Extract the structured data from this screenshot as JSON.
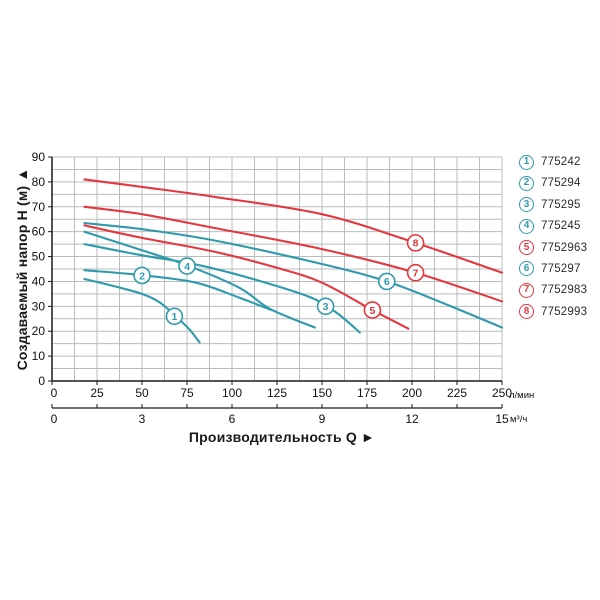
{
  "chart_data": {
    "type": "line",
    "title": "",
    "xlabel": "Производительность Q  ►",
    "ylabel": "Создаваемый напор Н (м)  ▲",
    "grid": true,
    "legend_position": "right",
    "colors": {
      "teal": "#2F9AAB",
      "red": "#E2383E",
      "grid": "#b9bcbe",
      "axis": "#1a1a1a",
      "text": "#111111"
    },
    "x_axis": {
      "primary": {
        "unit": "л/мин",
        "range": [
          0,
          250
        ],
        "ticks": [
          0,
          25,
          50,
          75,
          100,
          125,
          150,
          175,
          200,
          225,
          250
        ],
        "minor_step": 12.5
      },
      "secondary": {
        "unit": "м³/ч",
        "range": [
          0,
          15
        ],
        "labeled_ticks": [
          0,
          3,
          6,
          9,
          12,
          15
        ],
        "tick_step": 1.5
      }
    },
    "y_axis": {
      "range": [
        0,
        90
      ],
      "ticks": [
        0,
        10,
        20,
        30,
        40,
        50,
        60,
        70,
        80,
        90
      ],
      "minor_step": 5
    },
    "series": [
      {
        "num": "1",
        "code": "775242",
        "color": "teal",
        "points": [
          [
            18,
            41
          ],
          [
            35,
            38
          ],
          [
            50,
            35
          ],
          [
            60,
            31.5
          ],
          [
            68,
            26.5
          ],
          [
            76,
            21
          ],
          [
            82,
            15.5
          ]
        ],
        "marker": [
          68,
          26
        ]
      },
      {
        "num": "2",
        "code": "775294",
        "color": "teal",
        "points": [
          [
            18,
            44.5
          ],
          [
            50,
            42.5
          ],
          [
            80,
            39.5
          ],
          [
            104,
            33.5
          ],
          [
            122,
            28.5
          ]
        ],
        "marker": [
          50,
          42.4
        ]
      },
      {
        "num": "3",
        "code": "775295",
        "color": "teal",
        "points": [
          [
            18,
            55
          ],
          [
            50,
            50.5
          ],
          [
            82,
            46.5
          ],
          [
            114,
            40.5
          ],
          [
            143,
            33.8
          ],
          [
            158,
            27.5
          ],
          [
            171,
            19.5
          ]
        ],
        "marker": [
          152,
          30
        ]
      },
      {
        "num": "4",
        "code": "775245",
        "color": "teal",
        "points": [
          [
            18,
            60
          ],
          [
            50,
            52.5
          ],
          [
            75,
            46.5
          ],
          [
            104,
            37.5
          ],
          [
            121,
            29
          ],
          [
            146,
            21.5
          ]
        ],
        "marker": [
          75,
          46.2
        ]
      },
      {
        "num": "5",
        "code": "7752963",
        "color": "red",
        "points": [
          [
            18,
            62.5
          ],
          [
            50,
            57.5
          ],
          [
            90,
            52
          ],
          [
            125,
            45.5
          ],
          [
            150,
            39.5
          ],
          [
            178,
            28.5
          ],
          [
            198,
            21
          ]
        ],
        "marker": [
          178,
          28.5
        ]
      },
      {
        "num": "6",
        "code": "775297",
        "color": "teal",
        "points": [
          [
            18,
            63.5
          ],
          [
            50,
            61
          ],
          [
            90,
            56.5
          ],
          [
            150,
            47
          ],
          [
            186,
            40
          ],
          [
            220,
            30.5
          ],
          [
            250,
            21.5
          ]
        ],
        "marker": [
          186,
          40
        ]
      },
      {
        "num": "7",
        "code": "7752983",
        "color": "red",
        "points": [
          [
            18,
            70
          ],
          [
            50,
            67
          ],
          [
            90,
            61.5
          ],
          [
            150,
            53
          ],
          [
            202,
            43.5
          ],
          [
            250,
            32
          ]
        ],
        "marker": [
          202,
          43.5
        ]
      },
      {
        "num": "8",
        "code": "7752993",
        "color": "red",
        "points": [
          [
            18,
            81
          ],
          [
            50,
            78
          ],
          [
            90,
            74
          ],
          [
            150,
            67
          ],
          [
            202,
            55.5
          ],
          [
            250,
            43.5
          ]
        ],
        "marker": [
          202,
          55.5
        ]
      }
    ]
  },
  "legend": {
    "items": [
      {
        "num": "1",
        "code": "775242",
        "color": "teal"
      },
      {
        "num": "2",
        "code": "775294",
        "color": "teal"
      },
      {
        "num": "3",
        "code": "775295",
        "color": "teal"
      },
      {
        "num": "4",
        "code": "775245",
        "color": "teal"
      },
      {
        "num": "5",
        "code": "7752963",
        "color": "red"
      },
      {
        "num": "6",
        "code": "775297",
        "color": "teal"
      },
      {
        "num": "7",
        "code": "7752983",
        "color": "red"
      },
      {
        "num": "8",
        "code": "7752993",
        "color": "red"
      }
    ]
  }
}
